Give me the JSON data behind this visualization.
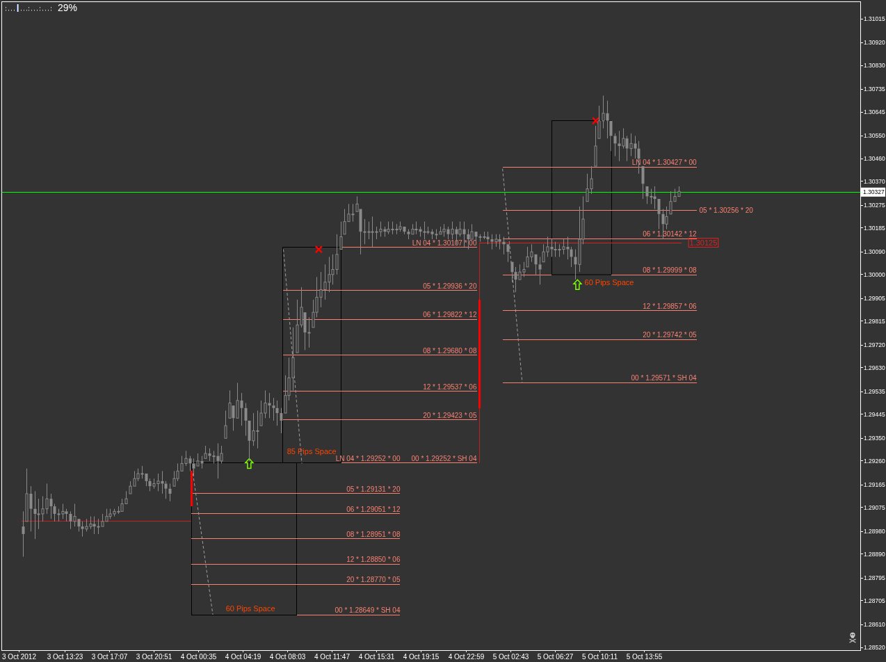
{
  "chart_data": {
    "type": "candlestick",
    "color": "#8a8a8a",
    "x": [
      "2012-10-03T09:50",
      "2012-10-03T10:10",
      "2012-10-03T10:30",
      "2012-10-03T10:50",
      "2012-10-03T11:10",
      "2012-10-03T11:30",
      "2012-10-03T11:50",
      "2012-10-03T12:10",
      "2012-10-03T12:30",
      "2012-10-03T12:50",
      "2012-10-03T13:10",
      "2012-10-03T13:30",
      "2012-10-03T13:50",
      "2012-10-03T14:10",
      "2012-10-03T14:30",
      "2012-10-03T14:50",
      "2012-10-03T15:10",
      "2012-10-03T15:30",
      "2012-10-03T15:50",
      "2012-10-03T16:10",
      "2012-10-03T16:30",
      "2012-10-03T16:50",
      "2012-10-03T17:10",
      "2012-10-03T17:30",
      "2012-10-03T17:50",
      "2012-10-03T18:10",
      "2012-10-03T18:30",
      "2012-10-03T18:50",
      "2012-10-03T19:10",
      "2012-10-03T19:30",
      "2012-10-03T19:50",
      "2012-10-03T20:10",
      "2012-10-03T20:30",
      "2012-10-03T20:50",
      "2012-10-03T21:10",
      "2012-10-03T21:30",
      "2012-10-03T21:50",
      "2012-10-03T22:10",
      "2012-10-03T22:30",
      "2012-10-03T22:50",
      "2012-10-03T23:10",
      "2012-10-03T23:30",
      "2012-10-03T23:50",
      "2012-10-04T00:10",
      "2012-10-04T00:30",
      "2012-10-04T00:50",
      "2012-10-04T01:10",
      "2012-10-04T01:30",
      "2012-10-04T01:50",
      "2012-10-04T02:10",
      "2012-10-04T02:30",
      "2012-10-04T02:50",
      "2012-10-04T03:10",
      "2012-10-04T03:30",
      "2012-10-04T03:50",
      "2012-10-04T04:10",
      "2012-10-04T04:30",
      "2012-10-04T04:50",
      "2012-10-04T05:10",
      "2012-10-04T05:30",
      "2012-10-04T05:50",
      "2012-10-04T06:10",
      "2012-10-04T06:30",
      "2012-10-04T06:50",
      "2012-10-04T07:10",
      "2012-10-04T07:30",
      "2012-10-04T07:50",
      "2012-10-04T08:10",
      "2012-10-04T08:30",
      "2012-10-04T08:50",
      "2012-10-04T09:10",
      "2012-10-04T09:30",
      "2012-10-04T09:50",
      "2012-10-04T10:10",
      "2012-10-04T10:30",
      "2012-10-04T10:50",
      "2012-10-04T11:10",
      "2012-10-04T11:30",
      "2012-10-04T11:50",
      "2012-10-04T12:10",
      "2012-10-04T12:30",
      "2012-10-04T12:50",
      "2012-10-04T13:10",
      "2012-10-04T13:30",
      "2012-10-04T13:50",
      "2012-10-04T14:10",
      "2012-10-04T14:30",
      "2012-10-04T14:50",
      "2012-10-04T15:10",
      "2012-10-04T15:30",
      "2012-10-04T15:50",
      "2012-10-04T16:10",
      "2012-10-04T16:30",
      "2012-10-04T16:50",
      "2012-10-04T17:10",
      "2012-10-04T17:30",
      "2012-10-04T17:50",
      "2012-10-04T18:10",
      "2012-10-04T18:30",
      "2012-10-04T18:50",
      "2012-10-04T19:10",
      "2012-10-04T19:30",
      "2012-10-04T19:50",
      "2012-10-04T20:10",
      "2012-10-04T20:30",
      "2012-10-04T20:50",
      "2012-10-04T21:10",
      "2012-10-04T21:30",
      "2012-10-04T21:50",
      "2012-10-04T22:10",
      "2012-10-04T22:30",
      "2012-10-04T22:50",
      "2012-10-04T23:10",
      "2012-10-04T23:30",
      "2012-10-04T23:50",
      "2012-10-05T00:10",
      "2012-10-05T00:30",
      "2012-10-05T00:50",
      "2012-10-05T01:10",
      "2012-10-05T01:30",
      "2012-10-05T01:50",
      "2012-10-05T02:10",
      "2012-10-05T02:30",
      "2012-10-05T02:50",
      "2012-10-05T03:10",
      "2012-10-05T03:30",
      "2012-10-05T03:50",
      "2012-10-05T04:10",
      "2012-10-05T04:30",
      "2012-10-05T04:50",
      "2012-10-05T05:10",
      "2012-10-05T05:30",
      "2012-10-05T05:50",
      "2012-10-05T06:10",
      "2012-10-05T06:30",
      "2012-10-05T06:50",
      "2012-10-05T07:10",
      "2012-10-05T07:30",
      "2012-10-05T07:50",
      "2012-10-05T08:10",
      "2012-10-05T08:30",
      "2012-10-05T08:50",
      "2012-10-05T09:10",
      "2012-10-05T09:30",
      "2012-10-05T09:50",
      "2012-10-05T10:10",
      "2012-10-05T10:30",
      "2012-10-05T10:50",
      "2012-10-05T11:10",
      "2012-10-05T11:30",
      "2012-10-05T11:50",
      "2012-10-05T12:10",
      "2012-10-05T12:30",
      "2012-10-05T12:50",
      "2012-10-05T13:10",
      "2012-10-05T13:30",
      "2012-10-05T13:50",
      "2012-10-05T14:10",
      "2012-10-05T14:30",
      "2012-10-05T14:50",
      "2012-10-05T15:10",
      "2012-10-05T15:30",
      "2012-10-05T15:50",
      "2012-10-05T16:10",
      "2012-10-05T16:30",
      "2012-10-05T16:50"
    ],
    "ohlc": [
      [
        1.29,
        1.2906,
        1.2888,
        1.2897
      ],
      [
        1.2902,
        1.2923,
        1.2902,
        1.2913
      ],
      [
        1.2913,
        1.2916,
        1.2898,
        1.2907
      ],
      [
        1.2907,
        1.2914,
        1.2895,
        1.2905
      ],
      [
        1.2905,
        1.2911,
        1.2899,
        1.2905
      ],
      [
        1.2905,
        1.2912,
        1.2902,
        1.2907
      ],
      [
        1.2907,
        1.2917,
        1.2905,
        1.2911
      ],
      [
        1.2911,
        1.2913,
        1.2903,
        1.2908
      ],
      [
        1.2908,
        1.2909,
        1.2902,
        1.2905
      ],
      [
        1.2905,
        1.2907,
        1.2902,
        1.2905
      ],
      [
        1.2905,
        1.2909,
        1.2903,
        1.2906
      ],
      [
        1.2906,
        1.2907,
        1.2902,
        1.2905
      ],
      [
        1.2905,
        1.2906,
        1.2899,
        1.2902
      ],
      [
        1.2902,
        1.2909,
        1.29,
        1.2904
      ],
      [
        1.2903,
        1.2903,
        1.2898,
        1.29
      ],
      [
        1.29,
        1.2902,
        1.2896,
        1.2899
      ],
      [
        1.2899,
        1.2903,
        1.2898,
        1.29
      ],
      [
        1.29,
        1.2904,
        1.2899,
        1.2901
      ],
      [
        1.2901,
        1.2904,
        1.2897,
        1.29
      ],
      [
        1.29,
        1.2903,
        1.2897,
        1.29
      ],
      [
        1.29,
        1.2905,
        1.29,
        1.2902
      ],
      [
        1.2902,
        1.2907,
        1.2902,
        1.2904
      ],
      [
        1.2904,
        1.2907,
        1.2903,
        1.2905
      ],
      [
        1.2905,
        1.2907,
        1.2904,
        1.2906
      ],
      [
        1.2906,
        1.2908,
        1.2905,
        1.2906
      ],
      [
        1.2906,
        1.2911,
        1.2906,
        1.2909
      ],
      [
        1.2909,
        1.2914,
        1.2909,
        1.2911
      ],
      [
        1.2913,
        1.2918,
        1.2913,
        1.2916
      ],
      [
        1.2916,
        1.2922,
        1.2916,
        1.2919
      ],
      [
        1.2919,
        1.2923,
        1.2918,
        1.2921
      ],
      [
        1.2921,
        1.2924,
        1.2919,
        1.2921
      ],
      [
        1.2921,
        1.2921,
        1.2916,
        1.2918
      ],
      [
        1.2918,
        1.2919,
        1.2914,
        1.2916
      ],
      [
        1.2916,
        1.2919,
        1.2915,
        1.2917
      ],
      [
        1.2917,
        1.2921,
        1.2914,
        1.2918
      ],
      [
        1.2918,
        1.2922,
        1.2913,
        1.2917
      ],
      [
        1.2917,
        1.2918,
        1.2911,
        1.2915
      ],
      [
        1.2915,
        1.2917,
        1.291,
        1.2913
      ],
      [
        1.2916,
        1.2922,
        1.2916,
        1.2919
      ],
      [
        1.2919,
        1.2925,
        1.2918,
        1.2922
      ],
      [
        1.2922,
        1.2928,
        1.2922,
        1.2925
      ],
      [
        1.2925,
        1.293,
        1.2924,
        1.2927
      ],
      [
        1.2927,
        1.2928,
        1.2922,
        1.2925
      ],
      [
        1.2925,
        1.2927,
        1.292,
        1.2923
      ],
      [
        1.2924,
        1.2929,
        1.2924,
        1.2926
      ],
      [
        1.2926,
        1.2928,
        1.2923,
        1.2925
      ],
      [
        1.2927,
        1.2932,
        1.2927,
        1.2929
      ],
      [
        1.2929,
        1.2931,
        1.2926,
        1.2928
      ],
      [
        1.2928,
        1.293,
        1.2925,
        1.2928
      ],
      [
        1.2928,
        1.2933,
        1.2919,
        1.2926
      ],
      [
        1.2926,
        1.2932,
        1.2925,
        1.2929
      ],
      [
        1.2935,
        1.2946,
        1.2935,
        1.294
      ],
      [
        1.2943,
        1.2954,
        1.2943,
        1.2949
      ],
      [
        1.2948,
        1.2948,
        1.2938,
        1.2943
      ],
      [
        1.2943,
        1.2957,
        1.2943,
        1.295
      ],
      [
        1.295,
        1.2953,
        1.294,
        1.2947
      ],
      [
        1.2947,
        1.2949,
        1.2936,
        1.2942
      ],
      [
        1.2942,
        1.2942,
        1.2926,
        1.2934
      ],
      [
        1.2934,
        1.2945,
        1.2932,
        1.2938
      ],
      [
        1.2938,
        1.2946,
        1.2931,
        1.2938
      ],
      [
        1.294,
        1.295,
        1.294,
        1.2945
      ],
      [
        1.2945,
        1.2954,
        1.2943,
        1.2949
      ],
      [
        1.2949,
        1.2953,
        1.2943,
        1.2948
      ],
      [
        1.2948,
        1.2951,
        1.2942,
        1.2947
      ],
      [
        1.2947,
        1.295,
        1.294,
        1.2945
      ],
      [
        1.2945,
        1.2947,
        1.2937,
        1.2942
      ],
      [
        1.2945,
        1.296,
        1.2945,
        1.2952
      ],
      [
        1.2952,
        1.2967,
        1.295,
        1.2959
      ],
      [
        1.2959,
        1.2979,
        1.2954,
        1.2967
      ],
      [
        1.2969,
        1.299,
        1.2969,
        1.298
      ],
      [
        1.298,
        1.2995,
        1.2979,
        1.2987
      ],
      [
        1.2985,
        1.2985,
        1.297,
        1.2977
      ],
      [
        1.2977,
        1.2983,
        1.2971,
        1.2977
      ],
      [
        1.2979,
        1.299,
        1.2979,
        1.2985
      ],
      [
        1.2985,
        1.2999,
        1.2983,
        1.2991
      ],
      [
        1.2991,
        1.3001,
        1.2987,
        1.2994
      ],
      [
        1.2994,
        1.3004,
        1.299,
        1.2997
      ],
      [
        1.2997,
        1.3007,
        1.2993,
        1.3
      ],
      [
        1.3,
        1.3008,
        1.2996,
        1.3002
      ],
      [
        1.3002,
        1.3016,
        1.3,
        1.3008
      ],
      [
        1.301,
        1.3021,
        1.301,
        1.3015
      ],
      [
        1.3016,
        1.3026,
        1.3016,
        1.3021
      ],
      [
        1.3021,
        1.3028,
        1.3021,
        1.3024
      ],
      [
        1.3024,
        1.3028,
        1.3021,
        1.3024
      ],
      [
        1.3025,
        1.3031,
        1.3025,
        1.3028
      ],
      [
        1.3026,
        1.3026,
        1.3008,
        1.3017
      ],
      [
        1.3017,
        1.3022,
        1.3012,
        1.3017
      ],
      [
        1.3017,
        1.3021,
        1.3014,
        1.3017
      ],
      [
        1.3017,
        1.3023,
        1.3011,
        1.3017
      ],
      [
        1.3017,
        1.3019,
        1.3014,
        1.3017
      ],
      [
        1.3017,
        1.3021,
        1.3015,
        1.3018
      ],
      [
        1.3018,
        1.3019,
        1.3015,
        1.3017
      ],
      [
        1.3017,
        1.3021,
        1.3016,
        1.3018
      ],
      [
        1.3018,
        1.3021,
        1.3016,
        1.3018
      ],
      [
        1.3018,
        1.302,
        1.3016,
        1.3018
      ],
      [
        1.3018,
        1.3021,
        1.3017,
        1.3019
      ],
      [
        1.3019,
        1.3019,
        1.3016,
        1.3017
      ],
      [
        1.3017,
        1.3018,
        1.3014,
        1.3016
      ],
      [
        1.3016,
        1.302,
        1.3016,
        1.3018
      ],
      [
        1.3018,
        1.3021,
        1.3016,
        1.3018
      ],
      [
        1.3018,
        1.3019,
        1.3015,
        1.3017
      ],
      [
        1.3017,
        1.3021,
        1.3014,
        1.3017
      ],
      [
        1.3017,
        1.3019,
        1.3016,
        1.3017
      ],
      [
        1.3017,
        1.3018,
        1.3014,
        1.3016
      ],
      [
        1.3016,
        1.3018,
        1.3014,
        1.3016
      ],
      [
        1.3016,
        1.3019,
        1.3016,
        1.3017
      ],
      [
        1.3017,
        1.302,
        1.3015,
        1.3018
      ],
      [
        1.3018,
        1.3019,
        1.3014,
        1.3016
      ],
      [
        1.3016,
        1.3021,
        1.3014,
        1.3018
      ],
      [
        1.3018,
        1.3019,
        1.3012,
        1.3016
      ],
      [
        1.3016,
        1.3021,
        1.3015,
        1.3018
      ],
      [
        1.3018,
        1.3021,
        1.3011,
        1.3016
      ],
      [
        1.3016,
        1.3018,
        1.301,
        1.3014
      ],
      [
        1.3014,
        1.302,
        1.3014,
        1.3017
      ],
      [
        1.3017,
        1.3017,
        1.3013,
        1.3015
      ],
      [
        1.3015,
        1.3016,
        1.3013,
        1.3015
      ],
      [
        1.3015,
        1.3017,
        1.3014,
        1.3015
      ],
      [
        1.3015,
        1.3017,
        1.3012,
        1.3014
      ],
      [
        1.3014,
        1.3016,
        1.301,
        1.3013
      ],
      [
        1.3013,
        1.3016,
        1.3011,
        1.3014
      ],
      [
        1.3014,
        1.3016,
        1.301,
        1.3013
      ],
      [
        1.3013,
        1.3015,
        1.3008,
        1.3012
      ],
      [
        1.3012,
        1.3012,
        1.3005,
        1.3009
      ],
      [
        1.3005,
        1.3005,
        1.2997,
        1.3001
      ],
      [
        1.3001,
        1.3003,
        1.2993,
        1.2998
      ],
      [
        1.2998,
        1.3004,
        1.2998,
        1.3001
      ],
      [
        1.3001,
        1.3005,
        1.2999,
        1.3002
      ],
      [
        1.3003,
        1.3011,
        1.3003,
        1.3007
      ],
      [
        1.3007,
        1.3012,
        1.3005,
        1.3009
      ],
      [
        1.3008,
        1.3008,
        1.3,
        1.3004
      ],
      [
        1.3004,
        1.3007,
        1.2996,
        1.3002
      ],
      [
        1.3005,
        1.3012,
        1.3005,
        1.3009
      ],
      [
        1.3009,
        1.3015,
        1.3007,
        1.3011
      ],
      [
        1.3011,
        1.3014,
        1.3007,
        1.301
      ],
      [
        1.301,
        1.3013,
        1.3007,
        1.301
      ],
      [
        1.301,
        1.3012,
        1.3007,
        1.301
      ],
      [
        1.301,
        1.3014,
        1.3008,
        1.3011
      ],
      [
        1.3011,
        1.3015,
        1.3006,
        1.301
      ],
      [
        1.301,
        1.3011,
        1.3003,
        1.3007
      ],
      [
        1.3007,
        1.301,
        1.2998,
        1.3004
      ],
      [
        1.3004,
        1.3027,
        1.3001,
        1.3014
      ],
      [
        1.3014,
        1.3031,
        1.3012,
        1.3022
      ],
      [
        1.3029,
        1.304,
        1.3029,
        1.3034
      ],
      [
        1.3034,
        1.3043,
        1.3032,
        1.3038
      ],
      [
        1.3043,
        1.3059,
        1.3043,
        1.3051
      ],
      [
        1.3054,
        1.3067,
        1.3054,
        1.3061
      ],
      [
        1.3061,
        1.3071,
        1.3058,
        1.3064
      ],
      [
        1.3064,
        1.3069,
        1.3054,
        1.3061
      ],
      [
        1.3061,
        1.3061,
        1.3049,
        1.3055
      ],
      [
        1.3055,
        1.3056,
        1.3047,
        1.3052
      ],
      [
        1.3052,
        1.3057,
        1.3045,
        1.3051
      ],
      [
        1.3051,
        1.3058,
        1.305,
        1.3054
      ],
      [
        1.3054,
        1.3055,
        1.3045,
        1.305
      ],
      [
        1.305,
        1.3056,
        1.3047,
        1.3052
      ],
      [
        1.3052,
        1.3055,
        1.3046,
        1.305
      ],
      [
        1.305,
        1.3053,
        1.304,
        1.3046
      ],
      [
        1.3043,
        1.3043,
        1.303,
        1.3036
      ],
      [
        1.3035,
        1.3035,
        1.3028,
        1.3031
      ],
      [
        1.3031,
        1.3034,
        1.3028,
        1.3031
      ],
      [
        1.3031,
        1.3035,
        1.3026,
        1.303
      ],
      [
        1.303,
        1.303,
        1.3018,
        1.3024
      ],
      [
        1.3024,
        1.3026,
        1.3014,
        1.302
      ],
      [
        1.302,
        1.3027,
        1.3018,
        1.3023
      ],
      [
        1.3024,
        1.3033,
        1.3024,
        1.3029
      ],
      [
        1.3029,
        1.3034,
        1.3029,
        1.3031
      ],
      [
        1.3031,
        1.3035,
        1.3031,
        1.3033
      ]
    ],
    "xlim": [
      "2012-10-03T08:03",
      "2012-10-06T08:05"
    ],
    "xticks": [
      {
        "value": "2012-10-03T09:32",
        "label": "3 Oct 2012"
      },
      {
        "value": "2012-10-03T13:23",
        "label": "3 Oct 13:23"
      },
      {
        "value": "2012-10-03T17:07",
        "label": "3 Oct 17:07"
      },
      {
        "value": "2012-10-03T20:51",
        "label": "3 Oct 20:51"
      },
      {
        "value": "2012-10-04T00:35",
        "label": "4 Oct 00:35"
      },
      {
        "value": "2012-10-04T04:19",
        "label": "4 Oct 04:19"
      },
      {
        "value": "2012-10-04T08:03",
        "label": "4 Oct 08:03"
      },
      {
        "value": "2012-10-04T11:47",
        "label": "4 Oct 11:47"
      },
      {
        "value": "2012-10-04T15:31",
        "label": "4 Oct 15:31"
      },
      {
        "value": "2012-10-04T19:15",
        "label": "4 Oct 19:15"
      },
      {
        "value": "2012-10-04T22:59",
        "label": "4 Oct 22:59"
      },
      {
        "value": "2012-10-05T02:43",
        "label": "5 Oct 02:43"
      },
      {
        "value": "2012-10-05T06:27",
        "label": "5 Oct 06:27"
      },
      {
        "value": "2012-10-05T10:11",
        "label": "5 Oct 10:11"
      },
      {
        "value": "2012-10-05T13:55",
        "label": "5 Oct 13:55"
      }
    ],
    "ylim": [
      1.28509,
      1.31084
    ],
    "yticks": [
      1.31015,
      {
        "value": 1.3092,
        "label": "1.30920"
      },
      {
        "value": 1.3083,
        "label": "1.30830"
      },
      1.30735,
      1.30645,
      {
        "value": 1.3055,
        "label": "1.30550"
      },
      {
        "value": 1.3046,
        "label": "1.30460"
      },
      {
        "value": 1.3037,
        "label": "1.30370"
      },
      1.30275,
      1.30185,
      {
        "value": 1.3009,
        "label": "1.30090"
      },
      {
        "value": 1.3,
        "label": "1.30000"
      },
      1.29905,
      1.29815,
      {
        "value": 1.2972,
        "label": "1.29720"
      },
      {
        "value": 1.2963,
        "label": "1.29630"
      },
      1.29535,
      1.29445,
      {
        "value": 1.2935,
        "label": "1.29350"
      },
      {
        "value": 1.2926,
        "label": "1.29260"
      },
      1.29165,
      1.29075,
      {
        "value": 1.2898,
        "label": "1.28980"
      },
      {
        "value": 1.2889,
        "label": "1.28890"
      },
      1.28795,
      1.28705,
      {
        "value": 1.2861,
        "label": "1.28610"
      },
      {
        "value": 1.2852,
        "label": "1.28520"
      }
    ],
    "ref_lines": [
      {
        "axis": "y",
        "value": 1.30327,
        "label": "1.30327",
        "color": "#00ff00"
      }
    ],
    "series": [
      {
        "type": "line",
        "name": "05 * 1.29131 * 20",
        "color": "#fa8072",
        "x": [
          "2012-10-04T00:00",
          "2012-10-04T17:30"
        ],
        "values": [
          1.29131,
          1.29131
        ]
      },
      {
        "type": "line",
        "name": "06 * 1.29051 * 12",
        "color": "#fa8072",
        "x": [
          "2012-10-04T00:00",
          "2012-10-04T17:30"
        ],
        "values": [
          1.29051,
          1.29051
        ]
      },
      {
        "type": "line",
        "name": "08 * 1.28951 * 08",
        "color": "#fa8072",
        "x": [
          "2012-10-04T00:00",
          "2012-10-04T17:30"
        ],
        "values": [
          1.28951,
          1.28951
        ]
      },
      {
        "type": "line",
        "name": "12 * 1.28850 * 06",
        "color": "#fa8072",
        "x": [
          "2012-10-04T00:00",
          "2012-10-04T17:30"
        ],
        "values": [
          1.2885,
          1.2885
        ]
      },
      {
        "type": "line",
        "name": "20 * 1.28770 * 05",
        "color": "#fa8072",
        "x": [
          "2012-10-04T00:00",
          "2012-10-04T17:30"
        ],
        "values": [
          1.2877,
          1.2877
        ]
      },
      {
        "type": "line",
        "name": "00 * 1.28649 * SH 04",
        "color": "#fa8072",
        "x": [
          "2012-10-04T08:50",
          "2012-10-04T17:30"
        ],
        "values": [
          1.28649,
          1.28649
        ]
      },
      {
        "type": "line",
        "name": "LN 04 * 1.30107 * 00",
        "color": "#fa8072",
        "x": [
          "2012-10-04T12:34",
          "2012-10-04T23:55"
        ],
        "values": [
          1.30107,
          1.30107
        ]
      },
      {
        "type": "line",
        "name": "05 * 1.29936 * 20",
        "color": "#fa8072",
        "x": [
          "2012-10-04T07:40",
          "2012-10-04T23:55"
        ],
        "values": [
          1.29936,
          1.29936
        ]
      },
      {
        "type": "line",
        "name": "06 * 1.29822 * 12",
        "color": "#fa8072",
        "x": [
          "2012-10-04T07:40",
          "2012-10-04T23:55"
        ],
        "values": [
          1.29822,
          1.29822
        ]
      },
      {
        "type": "line",
        "name": "08 * 1.29680 * 08",
        "color": "#fa8072",
        "x": [
          "2012-10-04T07:40",
          "2012-10-04T23:55"
        ],
        "values": [
          1.2968,
          1.2968
        ]
      },
      {
        "type": "line",
        "name": "12 * 1.29537 * 06",
        "color": "#fa8072",
        "x": [
          "2012-10-04T07:40",
          "2012-10-04T23:55"
        ],
        "values": [
          1.29537,
          1.29537
        ]
      },
      {
        "type": "line",
        "name": "20 * 1.29423 * 05",
        "color": "#fa8072",
        "x": [
          "2012-10-04T07:40",
          "2012-10-04T23:55"
        ],
        "values": [
          1.29423,
          1.29423
        ]
      },
      {
        "type": "line",
        "name": "00 * 1.29252 * SH 04",
        "color": "#fa8072",
        "x": [
          "2012-10-04T12:34",
          "2012-10-04T23:55"
        ],
        "values": [
          1.29252,
          1.29252
        ]
      },
      {
        "type": "line",
        "name": "LN 04 * 1.30427 * 00",
        "color": "#fa8072",
        "x": [
          "2012-10-05T02:05",
          "2012-10-05T18:21"
        ],
        "values": [
          1.30427,
          1.30427
        ]
      },
      {
        "type": "line",
        "name": "05 * 1.30256 * 20",
        "color": "#fa8072",
        "x": [
          "2012-10-05T02:05",
          "2012-10-05T18:21"
        ],
        "values": [
          1.30256,
          1.30256
        ]
      },
      {
        "type": "line",
        "name": "06 * 1.30142 * 12",
        "color": "#fa8072",
        "x": [
          "2012-10-05T02:05",
          "2012-10-05T18:21"
        ],
        "values": [
          1.30142,
          1.30142
        ]
      },
      {
        "type": "line",
        "name": "08 * 1.29999 * 08",
        "color": "#fa8072",
        "x": [
          "2012-10-05T02:05",
          "2012-10-05T06:12",
          "2012-10-05T08:40",
          "2012-10-05T11:13",
          "2012-10-05T18:21"
        ],
        "values": [
          1.29999,
          1.29999,
          null,
          1.29999,
          1.29999
        ]
      },
      {
        "type": "line",
        "name": "12 * 1.29857 * 06",
        "color": "#fa8072",
        "x": [
          "2012-10-05T02:05",
          "2012-10-05T18:21"
        ],
        "values": [
          1.29857,
          1.29857
        ]
      },
      {
        "type": "line",
        "name": "20 * 1.29742 * 05",
        "color": "#fa8072",
        "x": [
          "2012-10-05T02:05",
          "2012-10-05T18:21"
        ],
        "values": [
          1.29742,
          1.29742
        ]
      },
      {
        "type": "line",
        "name": "00 * 1.29571 * SH 04",
        "color": "#fa8072",
        "x": [
          "2012-10-05T02:05",
          "2012-10-05T18:21"
        ],
        "values": [
          1.29571,
          1.29571
        ]
      },
      {
        "type": "scatter",
        "marker": "triangle",
        "color": "#7cfc00",
        "x": [
          "2012-10-04T04:50",
          "2012-10-05T08:22"
        ],
        "values": [
          1.2925,
          1.2996
        ]
      },
      {
        "type": "scatter",
        "marker": "cross",
        "color": "#ff0000",
        "x": [
          "2012-10-04T10:40",
          "2012-10-05T09:54"
        ],
        "values": [
          1.301,
          1.3061
        ]
      },
      {
        "type": "line",
        "line_style": "dashed",
        "color": "#a0a0a0",
        "x": [
          "2012-10-04T00:07",
          "2012-10-04T01:47"
        ],
        "values": [
          1.2921,
          1.2865
        ]
      },
      {
        "type": "line",
        "line_style": "dashed",
        "color": "#a0a0a0",
        "x": [
          "2012-10-04T07:42",
          "2012-10-04T09:15"
        ],
        "values": [
          1.301,
          1.2925
        ]
      },
      {
        "type": "line",
        "line_style": "dashed",
        "color": "#a0a0a0",
        "x": [
          "2012-10-05T02:05",
          "2012-10-05T03:44"
        ],
        "values": [
          1.3042,
          1.2957
        ]
      },
      {
        "type": "line",
        "color": "#c02020",
        "x": [
          "2012-10-03T09:46",
          "2012-10-04T00:00"
        ],
        "values": [
          1.2902,
          1.2902
        ]
      },
      {
        "type": "line",
        "color": "#c02020",
        "x": [
          "2012-10-05T00:08",
          "2012-10-05T00:08"
        ],
        "values": [
          1.30125,
          1.299
        ]
      },
      {
        "type": "line",
        "color": "#c02020",
        "x": [
          "2012-10-05T00:08",
          "2012-10-05T00:08"
        ],
        "values": [
          1.2947,
          1.29252
        ]
      },
      {
        "type": "line",
        "name": "1.30125",
        "color": "#e02020",
        "x": [
          "2012-10-05T00:08",
          "2012-10-05T17:04"
        ],
        "values": [
          1.30125,
          1.30125
        ]
      },
      {
        "type": "line",
        "color": "#ff0000",
        "x": [
          "2012-10-04T00:00",
          "2012-10-04T00:00"
        ],
        "values": [
          1.2922,
          1.2908
        ]
      },
      {
        "type": "line",
        "color": "#ff0000",
        "x": [
          "2012-10-05T00:08",
          "2012-10-05T00:08"
        ],
        "values": [
          1.299,
          1.2947
        ]
      }
    ],
    "annotations": [
      "29%",
      "85 Pips Space",
      "60 Pips Space",
      "60 Pips Space",
      {
        "text": "LN 04 * 1.29252 * 00",
        "x": "2012-10-04T17:30",
        "y": 1.29252
      }
    ]
  }
}
